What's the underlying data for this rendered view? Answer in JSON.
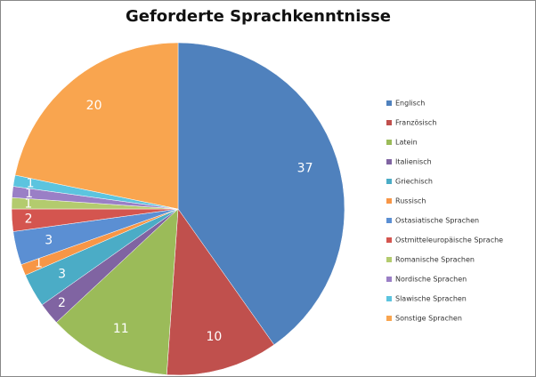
{
  "chart_data": {
    "type": "pie",
    "title": "Geforderte Sprachkenntnisse",
    "categories": [
      "Englisch",
      "Französisch",
      "Latein",
      "Italienisch",
      "Griechisch",
      "Russisch",
      "Ostasiatische Sprachen",
      "Ostmitteleuropäische Sprache",
      "Romanische Sprachen",
      "Nordische Sprachen",
      "Slawische Sprachen",
      "Sonstige Sprachen"
    ],
    "values": [
      37,
      10,
      11,
      2,
      3,
      1,
      3,
      2,
      1,
      1,
      1,
      20
    ],
    "colors": [
      "#4f81bd",
      "#c0504d",
      "#9bbb59",
      "#8064a2",
      "#4bacc6",
      "#f79646",
      "#5b8fd3",
      "#d4554f",
      "#b3cb6e",
      "#9a7fc6",
      "#5cc4df",
      "#f9a54f"
    ],
    "legend": "right"
  }
}
